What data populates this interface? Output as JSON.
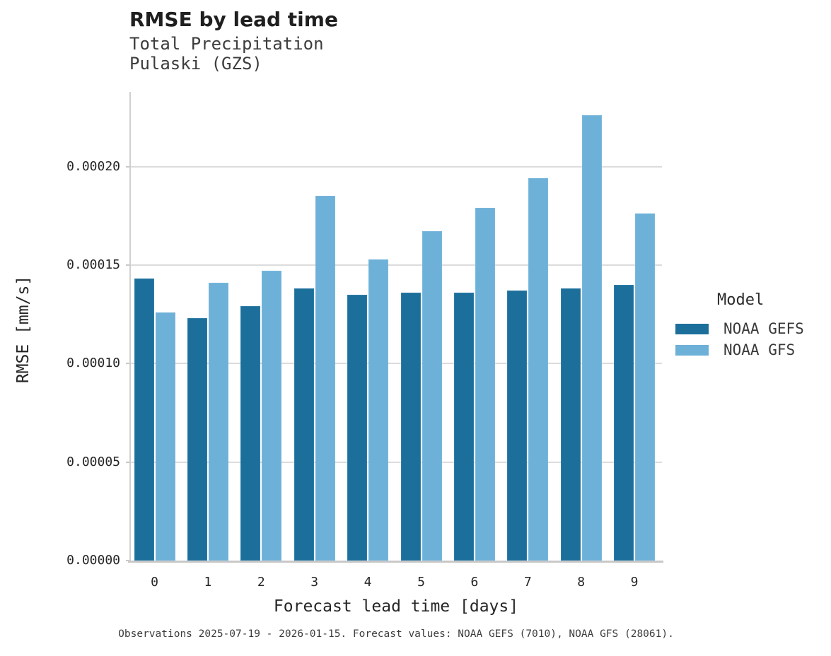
{
  "header": {
    "title": "RMSE by lead time",
    "subtitle_line1": "Total Precipitation",
    "subtitle_line2": "Pulaski (GZS)"
  },
  "legend": {
    "title": "Model",
    "entries": [
      "NOAA GEFS",
      "NOAA GFS"
    ]
  },
  "footer": {
    "caption": "Observations 2025-07-19 - 2026-01-15. Forecast values: NOAA GEFS (7010), NOAA GFS (28061)."
  },
  "chart_data": {
    "type": "bar",
    "title": "RMSE by lead time",
    "subtitle": "Total Precipitation — Pulaski (GZS)",
    "xlabel": "Forecast lead time [days]",
    "ylabel": "RMSE [mm/s]",
    "categories": [
      "0",
      "1",
      "2",
      "3",
      "4",
      "5",
      "6",
      "7",
      "8",
      "9"
    ],
    "series": [
      {
        "name": "NOAA GEFS",
        "color": "#1d6f9b",
        "values": [
          0.000143,
          0.000123,
          0.000129,
          0.000138,
          0.000135,
          0.000136,
          0.000136,
          0.000137,
          0.000138,
          0.00014
        ]
      },
      {
        "name": "NOAA GFS",
        "color": "#6db1d8",
        "values": [
          0.000126,
          0.000141,
          0.000147,
          0.000185,
          0.000153,
          0.000167,
          0.000179,
          0.000194,
          0.000226,
          0.000176
        ]
      }
    ],
    "ylim": [
      0,
      0.00023
    ],
    "yticks": [
      0,
      5e-05,
      0.0001,
      0.00015,
      0.0002
    ],
    "ytick_labels": [
      "0.00000",
      "0.00005",
      "0.00010",
      "0.00015",
      "0.00020"
    ],
    "grid": "horizontal",
    "legend_position": "right",
    "legend_title": "Model"
  },
  "colors": {
    "gefs_fill": "#1d6f9b",
    "gefs_edge": "#2f7da7",
    "gfs_fill": "#6db1d8",
    "gfs_edge": "#7ab7dc",
    "gridline": "#dcdcdc",
    "axis_spine": "#c8c8c8",
    "text": "#262626"
  }
}
